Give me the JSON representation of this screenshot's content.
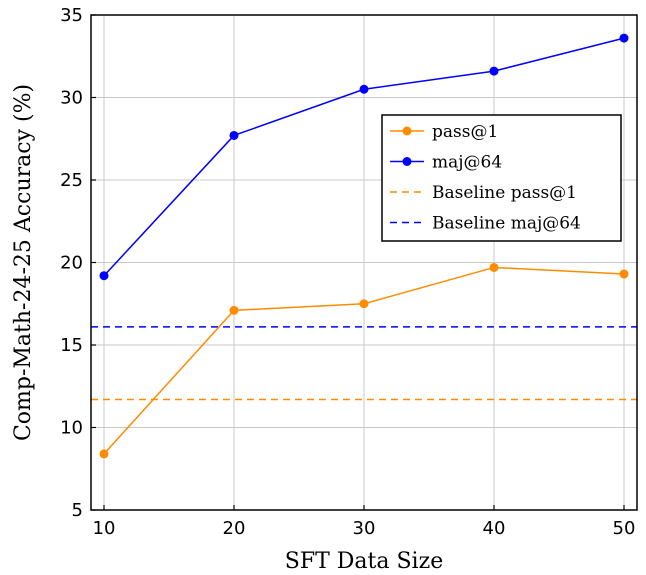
{
  "chart_data": {
    "type": "line",
    "xlabel": "SFT Data Size",
    "ylabel": "Comp-Math-24-25 Accuracy (%)",
    "xlim": [
      9,
      51
    ],
    "ylim": [
      5,
      35
    ],
    "x_ticks": [
      10,
      20,
      30,
      40,
      50
    ],
    "y_ticks": [
      5,
      10,
      15,
      20,
      25,
      30,
      35
    ],
    "grid": true,
    "legend_position": "upper-right-inside",
    "x": [
      10,
      20,
      30,
      40,
      50
    ],
    "series": [
      {
        "name": "pass@1",
        "color": "#ff8c00",
        "style": "solid",
        "marker": "circle",
        "values": [
          8.4,
          17.1,
          17.5,
          19.7,
          19.3
        ]
      },
      {
        "name": "maj@64",
        "color": "#0000ff",
        "style": "solid",
        "marker": "circle",
        "values": [
          19.2,
          27.7,
          30.5,
          31.6,
          33.6
        ]
      },
      {
        "name": "Baseline pass@1",
        "color": "#ff8c00",
        "style": "dashed",
        "marker": "none",
        "constant": 11.7
      },
      {
        "name": "Baseline maj@64",
        "color": "#0000ff",
        "style": "dashed",
        "marker": "none",
        "constant": 16.1
      }
    ]
  }
}
